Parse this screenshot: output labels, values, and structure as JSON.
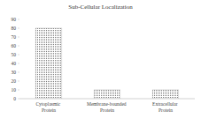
{
  "chart_data": {
    "type": "bar",
    "title": "Sub-Cellular Localization",
    "categories": [
      "Cytoplasmic Protein",
      "Membrane-bounded Protein",
      "Extracellular Protein"
    ],
    "values": [
      80,
      10,
      10
    ],
    "color": "#7f7f7f",
    "ylim": [
      0,
      90
    ],
    "yticks": [
      0,
      10,
      20,
      30,
      40,
      50,
      60,
      70,
      80,
      90
    ],
    "grid": false
  }
}
